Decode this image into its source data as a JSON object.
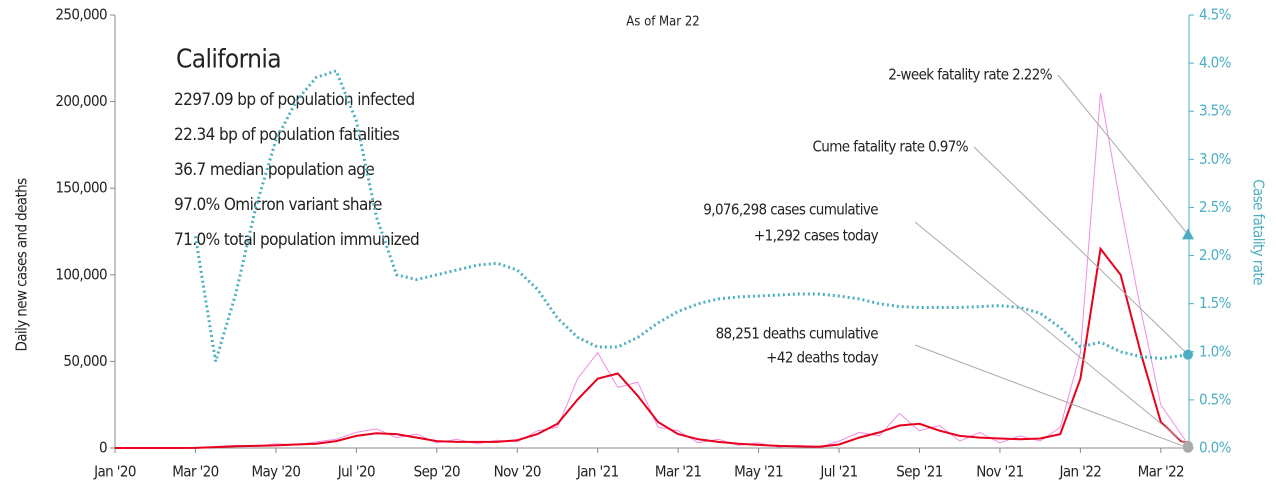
{
  "chart_data": {
    "type": "line",
    "title": "California",
    "subtitle": "As of Mar 22",
    "info": [
      "2297.09 bp of population infected",
      "22.34 bp of population fatalities",
      "36.7 median population age",
      "97.0% Omicron variant share",
      "71.0% total population immunized"
    ],
    "ylabel": "Daily new cases and deaths",
    "y2label": "Case fatality rate",
    "x": [
      0,
      0.5,
      1,
      1.5,
      2,
      2.5,
      3,
      3.5,
      4,
      4.5,
      5,
      5.5,
      6,
      6.5,
      7,
      7.5,
      8,
      8.5,
      9,
      9.5,
      10,
      10.5,
      11,
      11.5,
      12,
      12.5,
      13,
      13.5,
      14,
      14.5,
      15,
      15.5,
      16,
      16.5,
      17,
      17.5,
      18,
      18.5,
      19,
      19.5,
      20,
      20.5,
      21,
      21.5,
      22,
      22.5,
      23,
      23.5,
      24,
      24.5,
      25,
      25.5,
      26,
      26.5,
      26.7
    ],
    "series": [
      {
        "color": "#f08ce8",
        "width": 1,
        "dash": "none",
        "values": [
          0,
          0,
          0,
          0,
          100,
          800,
          1500,
          1000,
          2500,
          1800,
          3500,
          5000,
          9000,
          11000,
          6000,
          8000,
          3000,
          5000,
          2500,
          4500,
          3500,
          10000,
          12000,
          40000,
          55000,
          35000,
          38000,
          12000,
          10000,
          3000,
          5000,
          1500,
          3000,
          500,
          1500,
          300,
          4000,
          9000,
          7000,
          20000,
          10000,
          13000,
          4000,
          9000,
          3000,
          7000,
          4000,
          12000,
          55000,
          205000,
          140000,
          80000,
          25000,
          8000,
          1500
        ]
      },
      {
        "color": "#e8001c",
        "width": 2,
        "dash": "none",
        "values": [
          0,
          0,
          0,
          0,
          50,
          500,
          1000,
          1200,
          1500,
          2000,
          2500,
          4000,
          7000,
          8500,
          8000,
          6000,
          4000,
          3500,
          3500,
          3500,
          4500,
          8000,
          14000,
          28000,
          40000,
          43000,
          30000,
          15000,
          8000,
          5000,
          3500,
          2500,
          1800,
          1200,
          900,
          700,
          2000,
          6000,
          9000,
          13000,
          14000,
          10000,
          7000,
          6000,
          5500,
          5000,
          5500,
          8000,
          40000,
          115000,
          100000,
          55000,
          15000,
          4000,
          2500
        ]
      },
      {
        "color": "#4bafc4",
        "width": 3,
        "dash": "2 3",
        "axis": "y2",
        "values": [
          null,
          null,
          null,
          null,
          2.2,
          0.9,
          1.6,
          2.5,
          3.2,
          3.6,
          3.85,
          3.92,
          3.4,
          2.4,
          1.8,
          1.75,
          1.8,
          1.85,
          1.9,
          1.92,
          1.85,
          1.65,
          1.35,
          1.15,
          1.05,
          1.05,
          1.15,
          1.3,
          1.42,
          1.5,
          1.55,
          1.57,
          1.58,
          1.59,
          1.6,
          1.6,
          1.58,
          1.55,
          1.5,
          1.47,
          1.46,
          1.46,
          1.46,
          1.47,
          1.48,
          1.46,
          1.4,
          1.25,
          1.05,
          1.1,
          1.0,
          0.95,
          0.93,
          0.96,
          0.97
        ]
      }
    ],
    "annotations": [
      {
        "lines": [
          "2-week fatality rate 2.22%"
        ],
        "value": 2.22,
        "axis": "y2",
        "marker": "triangle",
        "color": "#4bafc4"
      },
      {
        "lines": [
          "Cume fatality rate 0.97%"
        ],
        "value": 0.97,
        "axis": "y2",
        "marker": "circle",
        "color": "#4bafc4"
      },
      {
        "lines": [
          "9,076,298 cases cumulative",
          "+1,292 cases today"
        ],
        "value": 1292,
        "axis": "y",
        "marker": "circle",
        "color": "#aaaaaa"
      },
      {
        "lines": [
          "88,251 deaths cumulative",
          "+42 deaths today"
        ],
        "value": 42,
        "axis": "y",
        "marker": "circle",
        "color": "#aaaaaa"
      }
    ],
    "xlim": [
      0,
      26.7
    ],
    "xticks": [
      {
        "value": 0,
        "label": "Jan '20"
      },
      {
        "value": 2,
        "label": "Mar '20"
      },
      {
        "value": 4,
        "label": "May '20"
      },
      {
        "value": 6,
        "label": "Jul '20"
      },
      {
        "value": 8,
        "label": "Sep '20"
      },
      {
        "value": 10,
        "label": "Nov '20"
      },
      {
        "value": 12,
        "label": "Jan '21"
      },
      {
        "value": 14,
        "label": "Mar '21"
      },
      {
        "value": 16,
        "label": "May '21"
      },
      {
        "value": 18,
        "label": "Jul '21"
      },
      {
        "value": 20,
        "label": "Sep '21"
      },
      {
        "value": 22,
        "label": "Nov '21"
      },
      {
        "value": 24,
        "label": "Jan '22"
      },
      {
        "value": 26,
        "label": "Mar '22"
      }
    ],
    "ylim": [
      0,
      250000
    ],
    "yticks": [
      0,
      {
        "value": 50000,
        "label": "50,000"
      },
      {
        "value": 100000,
        "label": "100,000"
      },
      {
        "value": 150000,
        "label": "150,000"
      },
      {
        "value": 200000,
        "label": "200,000"
      },
      {
        "value": 250000,
        "label": "250,000"
      }
    ],
    "y2lim": [
      0,
      4.5
    ],
    "y2ticks": [
      {
        "value": 0,
        "label": "0.0%"
      },
      {
        "value": 0.5,
        "label": "0.5%"
      },
      {
        "value": 1,
        "label": "1.0%"
      },
      {
        "value": 1.5,
        "label": "1.5%"
      },
      {
        "value": 2,
        "label": "2.0%"
      },
      {
        "value": 2.5,
        "label": "2.5%"
      },
      {
        "value": 3,
        "label": "3.0%"
      },
      {
        "value": 3.5,
        "label": "3.5%"
      },
      {
        "value": 4,
        "label": "4.0%"
      },
      {
        "value": 4.5,
        "label": "4.5%"
      }
    ],
    "y2color": "#4bafc4"
  }
}
